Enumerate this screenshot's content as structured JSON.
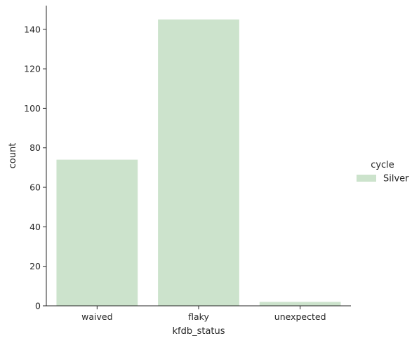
{
  "chart_data": {
    "type": "bar",
    "xlabel": "kfdb_status",
    "ylabel": "count",
    "categories": [
      "waived",
      "flaky",
      "unexpected"
    ],
    "series": [
      {
        "name": "Silver",
        "values": [
          74,
          145,
          2
        ],
        "color": "#cce3cc"
      }
    ],
    "ylim": [
      0,
      152
    ],
    "yticks": [
      0,
      20,
      40,
      60,
      80,
      100,
      120,
      140
    ],
    "ytick_labels": [
      "0",
      "20",
      "40",
      "60",
      "80",
      "100",
      "120",
      "140"
    ],
    "legend": {
      "title": "cycle",
      "placement": "right"
    },
    "grid": false
  }
}
